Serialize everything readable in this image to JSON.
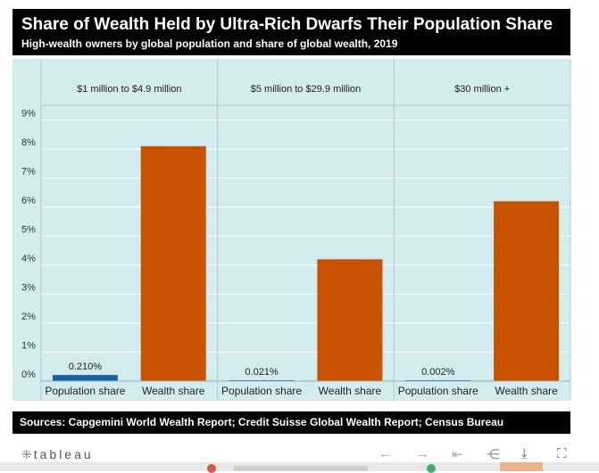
{
  "header": {
    "title": "Share of Wealth Held by Ultra-Rich Dwarfs Their Population Share",
    "subtitle": "High-wealth owners by global population and share of global wealth, 2019"
  },
  "footer": {
    "sources": "Sources: Capgemini World Wealth Report; Credit Suisse Global Wealth Report; Census Bureau"
  },
  "toolbar": {
    "brand": "tableau",
    "icons": [
      "undo-icon",
      "redo-icon",
      "revert-icon",
      "share-icon",
      "download-icon",
      "fullscreen-icon"
    ]
  },
  "chart_data": {
    "type": "bar",
    "panels": [
      "$1 million to $4.9 million",
      "$5 million to $29.9 million",
      "$30 million +"
    ],
    "categories": [
      "Population share",
      "Wealth share"
    ],
    "series": [
      {
        "panel": "$1 million to $4.9 million",
        "values": [
          0.21,
          8.1
        ],
        "labels": [
          "0.210%",
          ""
        ]
      },
      {
        "panel": "$5 million to $29.9 million",
        "values": [
          0.021,
          4.2
        ],
        "labels": [
          "0.021%",
          ""
        ]
      },
      {
        "panel": "$30 million +",
        "values": [
          0.002,
          6.2
        ],
        "labels": [
          "0.002%",
          ""
        ]
      }
    ],
    "yticks": [
      "0%",
      "1%",
      "2%",
      "3%",
      "4%",
      "5%",
      "6%",
      "7%",
      "8%",
      "9%"
    ],
    "ylim": [
      0,
      9
    ],
    "colors": {
      "population": "#1f5e9e",
      "wealth": "#c85200",
      "background": "#d2ecf0",
      "grid": "#ffffff"
    }
  }
}
